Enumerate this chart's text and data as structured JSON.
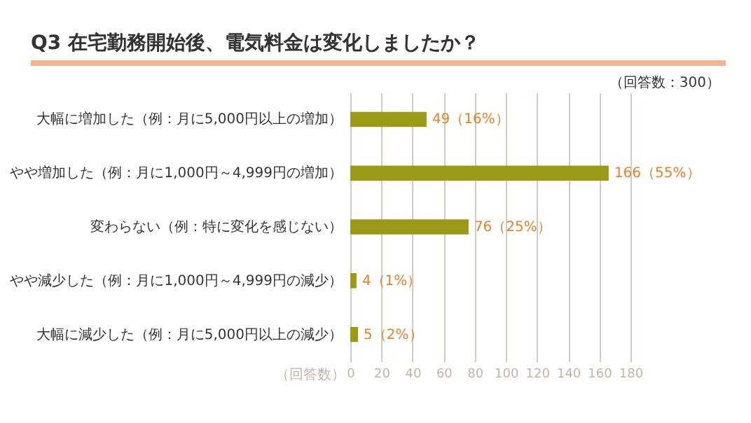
{
  "chart_data": {
    "type": "bar",
    "orientation": "horizontal",
    "title": "Q3 在宅勤務開始後、電気料金は変化しましたか？",
    "categories": [
      "大幅に増加した（例：月に5,000円以上の増加）",
      "やや増加した（例：月に1,000円～4,999円の増加）",
      "変わらない（例：特に変化を感じない）",
      "やや減少した（例：月に1,000円～4,999円の減少）",
      "大幅に減少した（例：月に5,000円以上の減少）"
    ],
    "values": [
      49,
      166,
      76,
      4,
      5
    ],
    "value_labels": [
      "49（16%）",
      "166（55%）",
      "76（25%）",
      "4（1%）",
      "5（2%）"
    ],
    "color": "#9a9a17",
    "xlabel": "（回答数）",
    "annotations": [
      "（回答数：300）"
    ],
    "xlim": [
      0,
      180
    ],
    "xticks": [
      0,
      20,
      40,
      60,
      80,
      100,
      120,
      140,
      160,
      180
    ],
    "grid": "x"
  }
}
